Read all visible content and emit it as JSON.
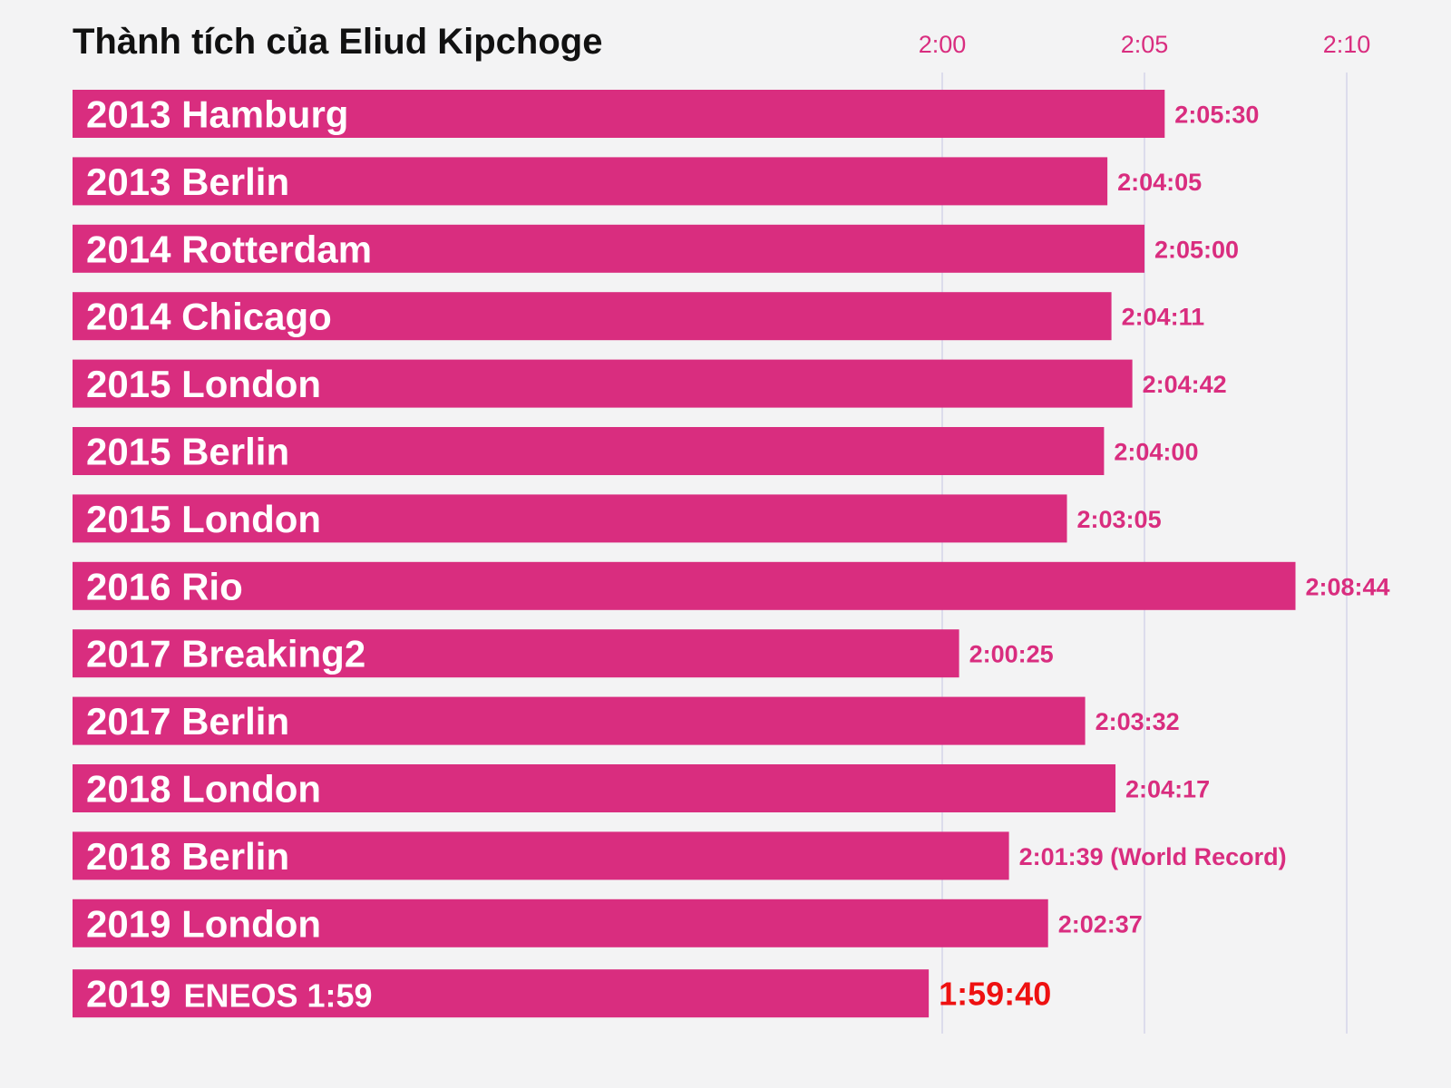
{
  "chart_data": {
    "type": "bar",
    "orientation": "horizontal",
    "title": "Thành tích của Eliud Kipchoge",
    "x_axis": {
      "position": "top",
      "ticks": [
        "2:00",
        "2:05",
        "2:10"
      ],
      "tick_values_seconds": [
        7200,
        7500,
        7800
      ],
      "grid": true
    },
    "categories": [
      "2013 Hamburg",
      "2013 Berlin",
      "2014 Rotterdam",
      "2014 Chicago",
      "2015 London",
      "2015 Berlin",
      "2015 London",
      "2016 Rio",
      "2017 Breaking2",
      "2017 Berlin",
      "2018 London",
      "2018 Berlin",
      "2019 London",
      "2019 ENEOS 1:59"
    ],
    "category_prefixes": [
      "2013 Hamburg",
      "2013 Berlin",
      "2014 Rotterdam",
      "2014 Chicago",
      "2015 London",
      "2015 Berlin",
      "2015 London",
      "2016 Rio",
      "2017 Breaking2",
      "2017 Berlin",
      "2018 London",
      "2018 Berlin",
      "2019 London",
      "2019"
    ],
    "category_suffixes": [
      "",
      "",
      "",
      "",
      "",
      "",
      "",
      "",
      "",
      "",
      "",
      "",
      "",
      "ENEOS 1:59"
    ],
    "values_seconds": [
      7530,
      7445,
      7500,
      7451,
      7482,
      7440,
      7385,
      7724,
      7225,
      7412,
      7457,
      7299,
      7357,
      7180
    ],
    "value_labels": [
      "2:05:30",
      "2:04:05",
      "2:05:00",
      "2:04:11",
      "2:04:42",
      "2:04:00",
      "2:03:05",
      "2:08:44",
      "2:00:25",
      "2:03:32",
      "2:04:17",
      "2:01:39 (World Record)",
      "2:02:37",
      "1:59:40"
    ],
    "highlight_index": 13,
    "colors": {
      "bar": "#d92d7f",
      "tick_text": "#d92d7f",
      "highlight_value": "#ee1111",
      "gridline": "#dcdcec",
      "background": "#f3f3f4"
    }
  }
}
